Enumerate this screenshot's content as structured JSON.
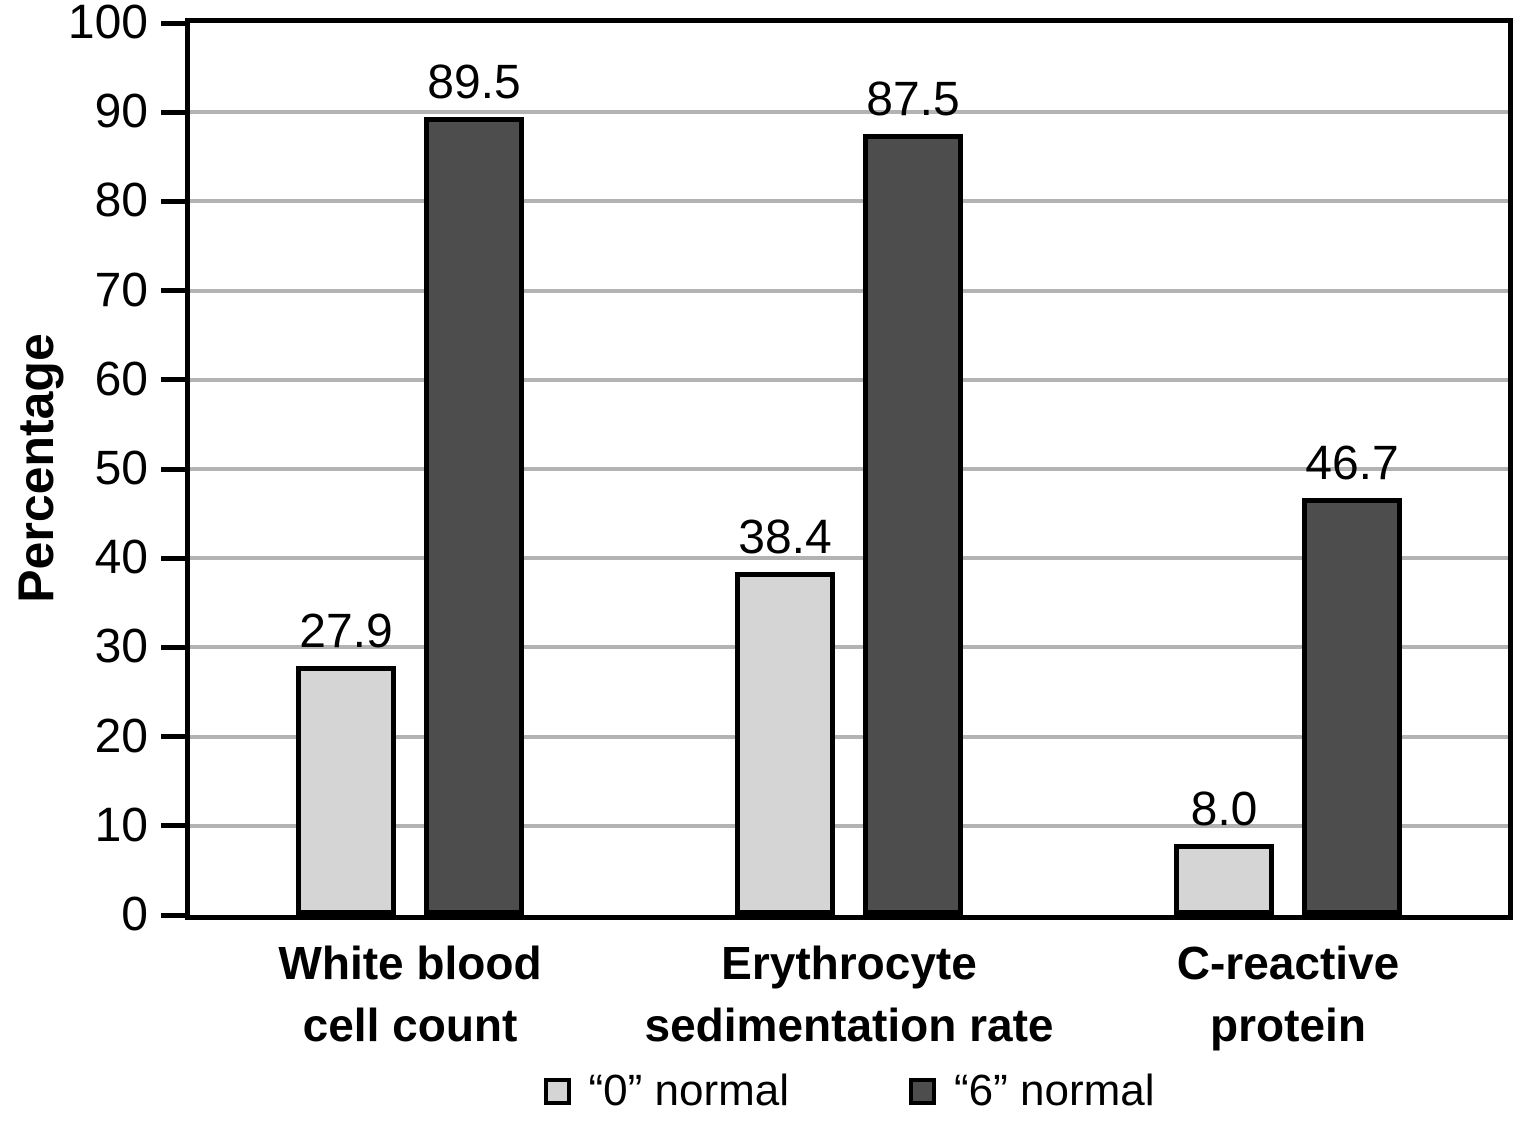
{
  "chart_data": {
    "type": "bar",
    "title": "",
    "ylabel": "Percentage",
    "xlabel": "",
    "ylim": [
      0,
      100
    ],
    "ytick_step": 10,
    "yticks": [
      0,
      10,
      20,
      30,
      40,
      50,
      60,
      70,
      80,
      90,
      100
    ],
    "grid": true,
    "legend_position": "bottom",
    "categories": [
      "White blood\ncell count",
      "Erythrocyte\nsedimentation rate",
      "C-reactive\nprotein"
    ],
    "series": [
      {
        "name": "“0” normal",
        "color": "#d5d5d5",
        "values": [
          27.9,
          38.4,
          8.0
        ],
        "value_labels": [
          "27.9",
          "38.4",
          "8.0"
        ]
      },
      {
        "name": "“6” normal",
        "color": "#4d4d4d",
        "values": [
          89.5,
          87.5,
          46.7
        ],
        "value_labels": [
          "89.5",
          "87.5",
          "46.7"
        ]
      }
    ]
  },
  "colors": {
    "background": "#ffffff",
    "axis": "#000000",
    "gridline": "#b3b3b3",
    "bar_border": "#000000",
    "text": "#000000"
  }
}
